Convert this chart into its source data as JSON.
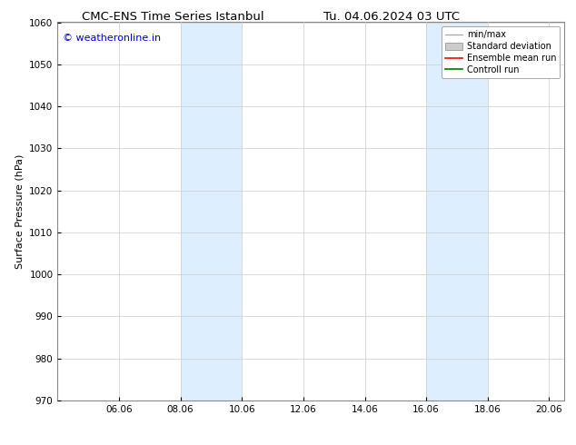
{
  "title_left": "CMC-ENS Time Series Istanbul",
  "title_right": "Tu. 04.06.2024 03 UTC",
  "ylabel": "Surface Pressure (hPa)",
  "ylim": [
    970,
    1060
  ],
  "yticks": [
    970,
    980,
    990,
    1000,
    1010,
    1020,
    1030,
    1040,
    1050,
    1060
  ],
  "xlim": [
    4.06,
    20.56
  ],
  "xticks": [
    6.06,
    8.06,
    10.06,
    12.06,
    14.06,
    16.06,
    18.06,
    20.06
  ],
  "xticklabels": [
    "06.06",
    "08.06",
    "10.06",
    "12.06",
    "14.06",
    "16.06",
    "18.06",
    "20.06"
  ],
  "shaded_bands": [
    {
      "x_start": 8.06,
      "x_end": 10.06
    },
    {
      "x_start": 16.06,
      "x_end": 18.06
    }
  ],
  "shade_color": "#ddeeff",
  "watermark_text": "© weatheronline.in",
  "watermark_color": "#0000cc",
  "watermark_fontsize": 8,
  "legend_entries": [
    {
      "label": "min/max",
      "color": "#aaaaaa",
      "type": "line",
      "linewidth": 1.0
    },
    {
      "label": "Standard deviation",
      "color": "#cccccc",
      "type": "patch"
    },
    {
      "label": "Ensemble mean run",
      "color": "#ff0000",
      "type": "line",
      "linewidth": 1.2
    },
    {
      "label": "Controll run",
      "color": "#007700",
      "type": "line",
      "linewidth": 1.2
    }
  ],
  "bg_color": "#ffffff",
  "grid_color": "#cccccc",
  "title_fontsize": 9.5,
  "tick_fontsize": 7.5,
  "ylabel_fontsize": 8,
  "legend_fontsize": 7
}
